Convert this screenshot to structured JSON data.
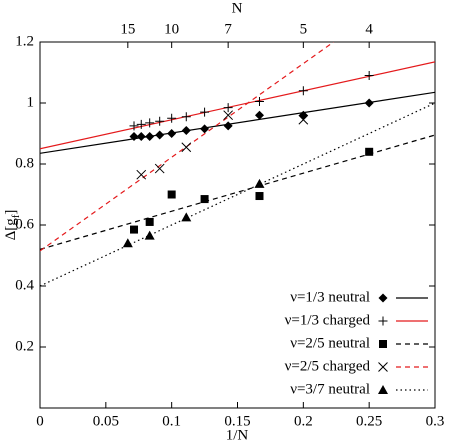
{
  "chart_data": {
    "type": "scatter",
    "xlabel": "1/N",
    "x2label": "N",
    "ylabel": {
      "base": "Δ[g",
      "sub": "f",
      "end": "]"
    },
    "xlim": [
      0,
      0.3
    ],
    "ylim": [
      0,
      1.2
    ],
    "xticks": [
      0,
      0.05,
      0.1,
      0.15,
      0.2,
      0.25,
      0.3
    ],
    "yticks": [
      0.2,
      0.4,
      0.6,
      0.8,
      1,
      1.2
    ],
    "x2ticks": [
      {
        "value": 0.0667,
        "label": "15"
      },
      {
        "value": 0.1,
        "label": "10"
      },
      {
        "value": 0.1429,
        "label": "7"
      },
      {
        "value": 0.2,
        "label": "5"
      },
      {
        "value": 0.25,
        "label": "4"
      }
    ],
    "legend": "lower right",
    "series": [
      {
        "name": "ν=1/3 neutral",
        "marker": "diamond",
        "color": "#000000",
        "line_color": "#000000",
        "line_style": "solid",
        "x": [
          0.0714,
          0.0769,
          0.0833,
          0.0909,
          0.1,
          0.1111,
          0.125,
          0.1429,
          0.1667,
          0.2,
          0.25
        ],
        "values": [
          0.89,
          0.89,
          0.89,
          0.895,
          0.9,
          0.91,
          0.915,
          0.925,
          0.96,
          0.96,
          1.0
        ],
        "fit_x": [
          0,
          0.3
        ],
        "fit_y": [
          0.835,
          1.035
        ]
      },
      {
        "name": "ν=1/3 charged",
        "marker": "plus",
        "color": "#000000",
        "line_color": "#e41a1c",
        "line_style": "solid",
        "x": [
          0.0714,
          0.0769,
          0.0833,
          0.0909,
          0.1,
          0.1111,
          0.125,
          0.1429,
          0.1667,
          0.2,
          0.25
        ],
        "values": [
          0.925,
          0.93,
          0.935,
          0.94,
          0.95,
          0.955,
          0.97,
          0.985,
          1.005,
          1.04,
          1.09
        ],
        "fit_x": [
          0,
          0.3
        ],
        "fit_y": [
          0.85,
          1.135
        ]
      },
      {
        "name": "ν=2/5 neutral",
        "marker": "square",
        "color": "#000000",
        "line_color": "#000000",
        "line_style": "dashed",
        "x": [
          0.0714,
          0.0833,
          0.1,
          0.125,
          0.1667,
          0.25
        ],
        "values": [
          0.585,
          0.61,
          0.7,
          0.685,
          0.695,
          0.84
        ],
        "fit_x": [
          0,
          0.3
        ],
        "fit_y": [
          0.52,
          0.895
        ]
      },
      {
        "name": "ν=2/5 charged",
        "marker": "x",
        "color": "#000000",
        "line_color": "#e41a1c",
        "line_style": "dashed",
        "x": [
          0.0769,
          0.0909,
          0.1111,
          0.1429,
          0.2
        ],
        "values": [
          0.765,
          0.785,
          0.855,
          0.96,
          0.945
        ],
        "fit_x": [
          0,
          0.223
        ],
        "fit_y": [
          0.515,
          1.2
        ]
      },
      {
        "name": "ν=3/7 neutral",
        "marker": "triangle",
        "color": "#000000",
        "line_color": "#000000",
        "line_style": "dotted",
        "x": [
          0.0667,
          0.0833,
          0.1111,
          0.1667
        ],
        "values": [
          0.54,
          0.565,
          0.625,
          0.735
        ],
        "fit_x": [
          0,
          0.3
        ],
        "fit_y": [
          0.4,
          1.0
        ]
      }
    ]
  }
}
